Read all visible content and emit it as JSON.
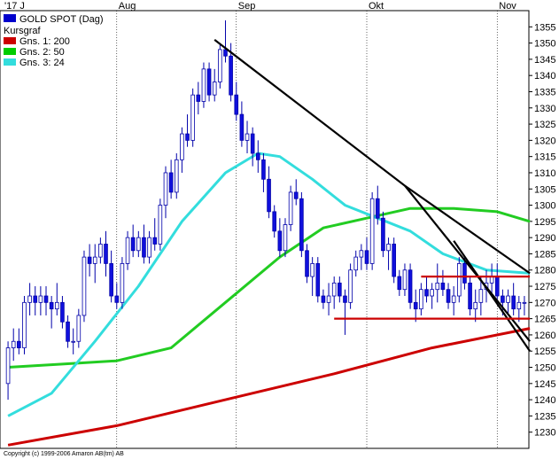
{
  "chart_data": {
    "type": "candlestick",
    "instrument_label": "GOLD SPOT (Dag)",
    "legend": [
      {
        "label": "Kursgraf",
        "color": "#0000cc",
        "swatch": false
      },
      {
        "label": "Gns. 1: 200",
        "color": "#cc0000",
        "swatch": true
      },
      {
        "label": "Gns. 2: 50",
        "color": "#00cc00",
        "swatch": true
      },
      {
        "label": "Gns. 3: 24",
        "color": "#33dddd",
        "swatch": true
      }
    ],
    "months": [
      "'17 J",
      "Aug",
      "Sep",
      "Okt",
      "Nov"
    ],
    "ylim": [
      1225,
      1360
    ],
    "y_ticks": [
      1230,
      1235,
      1240,
      1245,
      1250,
      1255,
      1260,
      1265,
      1270,
      1275,
      1280,
      1285,
      1290,
      1295,
      1300,
      1305,
      1310,
      1315,
      1320,
      1325,
      1330,
      1335,
      1340,
      1345,
      1350,
      1355
    ],
    "n_days": 96,
    "candles": [
      [
        1245,
        1258,
        1240,
        1256
      ],
      [
        1256,
        1262,
        1252,
        1258
      ],
      [
        1258,
        1262,
        1254,
        1256
      ],
      [
        1256,
        1272,
        1254,
        1270
      ],
      [
        1270,
        1276,
        1266,
        1272
      ],
      [
        1272,
        1275,
        1266,
        1270
      ],
      [
        1270,
        1275,
        1266,
        1272
      ],
      [
        1272,
        1275,
        1266,
        1270
      ],
      [
        1270,
        1272,
        1262,
        1268
      ],
      [
        1268,
        1276,
        1266,
        1270
      ],
      [
        1270,
        1272,
        1262,
        1264
      ],
      [
        1264,
        1266,
        1256,
        1258
      ],
      [
        1258,
        1262,
        1254,
        1258
      ],
      [
        1258,
        1268,
        1256,
        1266
      ],
      [
        1266,
        1286,
        1264,
        1284
      ],
      [
        1284,
        1288,
        1278,
        1282
      ],
      [
        1282,
        1288,
        1276,
        1284
      ],
      [
        1284,
        1290,
        1282,
        1288
      ],
      [
        1288,
        1292,
        1278,
        1282
      ],
      [
        1282,
        1286,
        1270,
        1272
      ],
      [
        1272,
        1276,
        1268,
        1270
      ],
      [
        1270,
        1284,
        1268,
        1282
      ],
      [
        1282,
        1292,
        1280,
        1290
      ],
      [
        1290,
        1294,
        1284,
        1286
      ],
      [
        1286,
        1292,
        1284,
        1290
      ],
      [
        1290,
        1294,
        1282,
        1284
      ],
      [
        1284,
        1292,
        1282,
        1290
      ],
      [
        1290,
        1296,
        1286,
        1288
      ],
      [
        1288,
        1302,
        1286,
        1300
      ],
      [
        1300,
        1312,
        1296,
        1310
      ],
      [
        1310,
        1314,
        1302,
        1304
      ],
      [
        1304,
        1316,
        1302,
        1314
      ],
      [
        1314,
        1324,
        1310,
        1322
      ],
      [
        1322,
        1328,
        1318,
        1320
      ],
      [
        1320,
        1336,
        1318,
        1334
      ],
      [
        1334,
        1338,
        1328,
        1332
      ],
      [
        1332,
        1344,
        1330,
        1342
      ],
      [
        1342,
        1344,
        1332,
        1334
      ],
      [
        1334,
        1342,
        1332,
        1338
      ],
      [
        1338,
        1350,
        1336,
        1348
      ],
      [
        1348,
        1357,
        1344,
        1346
      ],
      [
        1346,
        1350,
        1332,
        1334
      ],
      [
        1334,
        1338,
        1326,
        1328
      ],
      [
        1328,
        1332,
        1318,
        1320
      ],
      [
        1320,
        1326,
        1316,
        1322
      ],
      [
        1322,
        1324,
        1312,
        1316
      ],
      [
        1316,
        1320,
        1310,
        1314
      ],
      [
        1314,
        1316,
        1304,
        1308
      ],
      [
        1308,
        1312,
        1296,
        1298
      ],
      [
        1298,
        1300,
        1290,
        1292
      ],
      [
        1292,
        1296,
        1284,
        1286
      ],
      [
        1286,
        1296,
        1284,
        1294
      ],
      [
        1294,
        1306,
        1292,
        1304
      ],
      [
        1304,
        1308,
        1300,
        1302
      ],
      [
        1302,
        1304,
        1284,
        1286
      ],
      [
        1286,
        1288,
        1276,
        1278
      ],
      [
        1278,
        1284,
        1272,
        1282
      ],
      [
        1282,
        1284,
        1270,
        1272
      ],
      [
        1272,
        1274,
        1268,
        1270
      ],
      [
        1270,
        1276,
        1266,
        1272
      ],
      [
        1272,
        1278,
        1268,
        1276
      ],
      [
        1276,
        1278,
        1270,
        1272
      ],
      [
        1272,
        1274,
        1260,
        1270
      ],
      [
        1270,
        1282,
        1268,
        1280
      ],
      [
        1280,
        1286,
        1278,
        1284
      ],
      [
        1284,
        1288,
        1280,
        1286
      ],
      [
        1286,
        1290,
        1280,
        1282
      ],
      [
        1282,
        1304,
        1280,
        1302
      ],
      [
        1302,
        1306,
        1294,
        1296
      ],
      [
        1296,
        1298,
        1284,
        1286
      ],
      [
        1286,
        1290,
        1280,
        1288
      ],
      [
        1288,
        1290,
        1276,
        1278
      ],
      [
        1278,
        1280,
        1272,
        1274
      ],
      [
        1274,
        1282,
        1272,
        1280
      ],
      [
        1280,
        1282,
        1268,
        1270
      ],
      [
        1270,
        1274,
        1264,
        1268
      ],
      [
        1268,
        1276,
        1266,
        1274
      ],
      [
        1274,
        1278,
        1270,
        1272
      ],
      [
        1272,
        1276,
        1268,
        1274
      ],
      [
        1274,
        1282,
        1270,
        1276
      ],
      [
        1276,
        1280,
        1272,
        1274
      ],
      [
        1274,
        1276,
        1268,
        1270
      ],
      [
        1270,
        1275,
        1266,
        1272
      ],
      [
        1272,
        1284,
        1270,
        1282
      ],
      [
        1282,
        1284,
        1274,
        1276
      ],
      [
        1276,
        1278,
        1266,
        1268
      ],
      [
        1268,
        1274,
        1264,
        1270
      ],
      [
        1270,
        1278,
        1266,
        1274
      ],
      [
        1274,
        1280,
        1270,
        1276
      ],
      [
        1276,
        1282,
        1272,
        1278
      ],
      [
        1278,
        1282,
        1270,
        1272
      ],
      [
        1272,
        1274,
        1266,
        1270
      ],
      [
        1270,
        1274,
        1266,
        1272
      ],
      [
        1272,
        1276,
        1266,
        1268
      ],
      [
        1268,
        1272,
        1264,
        1270
      ],
      [
        1270,
        1272,
        1266,
        1270
      ]
    ],
    "moving_averages": [
      {
        "name": "Gns. 1: 200",
        "color": "#cc0000",
        "points": [
          [
            0,
            1226
          ],
          [
            20,
            1232
          ],
          [
            40,
            1240
          ],
          [
            60,
            1248
          ],
          [
            78,
            1256
          ],
          [
            96,
            1262
          ]
        ]
      },
      {
        "name": "Gns. 2: 50",
        "color": "#22cc22",
        "points": [
          [
            0,
            1250
          ],
          [
            10,
            1251
          ],
          [
            20,
            1252
          ],
          [
            30,
            1256
          ],
          [
            40,
            1270
          ],
          [
            50,
            1284
          ],
          [
            58,
            1293
          ],
          [
            66,
            1296
          ],
          [
            74,
            1299
          ],
          [
            82,
            1299
          ],
          [
            90,
            1298
          ],
          [
            96,
            1295
          ]
        ]
      },
      {
        "name": "Gns. 3: 24",
        "color": "#33dddd",
        "points": [
          [
            0,
            1235
          ],
          [
            8,
            1242
          ],
          [
            16,
            1258
          ],
          [
            24,
            1275
          ],
          [
            32,
            1295
          ],
          [
            40,
            1310
          ],
          [
            46,
            1316
          ],
          [
            50,
            1315
          ],
          [
            56,
            1308
          ],
          [
            62,
            1300
          ],
          [
            68,
            1296
          ],
          [
            74,
            1292
          ],
          [
            80,
            1285
          ],
          [
            88,
            1280
          ],
          [
            96,
            1279
          ]
        ]
      }
    ],
    "trendlines": [
      {
        "color": "#000000",
        "points": [
          [
            38,
            1351
          ],
          [
            73,
            1306
          ],
          [
            96,
            1279
          ]
        ]
      },
      {
        "color": "#000000",
        "points": [
          [
            73,
            1306
          ],
          [
            96,
            1258
          ]
        ]
      },
      {
        "color": "#000000",
        "points": [
          [
            82,
            1289
          ],
          [
            96,
            1255
          ]
        ]
      },
      {
        "color": "#cc0000",
        "points": [
          [
            60,
            1265
          ],
          [
            96,
            1265
          ]
        ]
      },
      {
        "color": "#cc0000",
        "points": [
          [
            76,
            1278
          ],
          [
            96,
            1278
          ]
        ]
      }
    ],
    "copyright": "Copyright (c) 1999-2006 Amaron AB(tm) AB"
  }
}
